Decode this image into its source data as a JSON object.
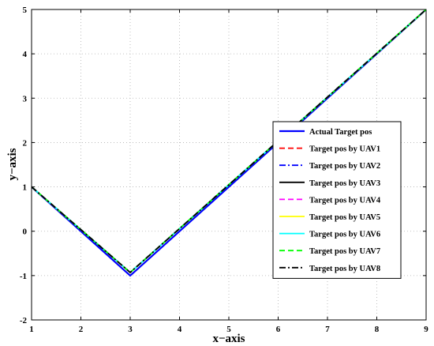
{
  "chart_data": {
    "type": "line",
    "xlabel": "x−axis",
    "ylabel": "y−axis",
    "xlim": [
      1,
      9
    ],
    "ylim": [
      -2,
      5
    ],
    "xticks": [
      "1",
      "2",
      "3",
      "4",
      "5",
      "6",
      "7",
      "8",
      "9"
    ],
    "yticks": [
      "-2",
      "-1",
      "0",
      "1",
      "2",
      "3",
      "4",
      "5"
    ],
    "grid": true,
    "legend_position": "center-right",
    "series": [
      {
        "name": "Actual Target pos",
        "color": "#0000ff",
        "style": "solid",
        "x": [
          1,
          3,
          9
        ],
        "y": [
          1,
          -1,
          5
        ]
      },
      {
        "name": "Target pos by UAV1",
        "color": "#ff0000",
        "style": "dashed",
        "x": [
          1,
          3,
          9
        ],
        "y": [
          1,
          -0.93,
          5
        ]
      },
      {
        "name": "Target pos by UAV2",
        "color": "#0000ff",
        "style": "dashdot",
        "x": [
          1,
          3,
          9
        ],
        "y": [
          1,
          -0.93,
          5
        ]
      },
      {
        "name": "Target pos by UAV3",
        "color": "#000000",
        "style": "solid",
        "x": [
          1,
          3,
          9
        ],
        "y": [
          1,
          -0.93,
          5
        ]
      },
      {
        "name": "Target pos by UAV4",
        "color": "#ff00ff",
        "style": "dashed",
        "x": [
          1,
          3,
          9
        ],
        "y": [
          1,
          -0.93,
          5
        ]
      },
      {
        "name": "Target pos by UAV5",
        "color": "#ffff00",
        "style": "solid",
        "x": [
          1,
          3,
          9
        ],
        "y": [
          1,
          -0.93,
          5
        ]
      },
      {
        "name": "Target pos by UAV6",
        "color": "#00ffff",
        "style": "solid",
        "x": [
          1,
          3,
          9
        ],
        "y": [
          1,
          -0.93,
          5
        ]
      },
      {
        "name": "Target pos by UAV7",
        "color": "#00ff00",
        "style": "dashed",
        "x": [
          1,
          3,
          9
        ],
        "y": [
          1,
          -0.93,
          5
        ]
      },
      {
        "name": "Target pos by UAV8",
        "color": "#000000",
        "style": "dashdot",
        "x": [
          1,
          3,
          9
        ],
        "y": [
          1,
          -0.93,
          5
        ]
      }
    ]
  }
}
